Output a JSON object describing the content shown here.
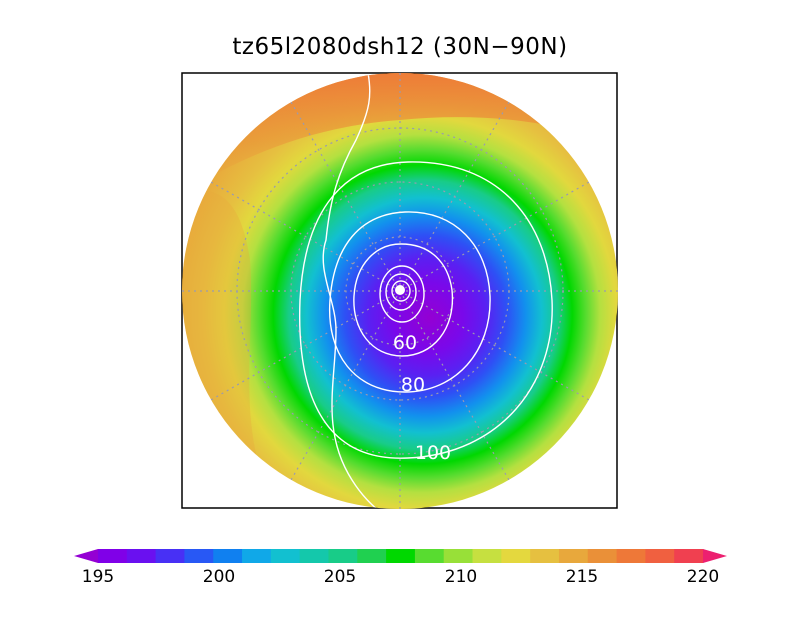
{
  "title": "tz65l2080dsh12 (30N−90N)",
  "map": {
    "projection": "north-polar-stereographic",
    "latitude_range": "30N-90N",
    "grid": "dotted",
    "contour_labels": [
      "60",
      "80",
      "100"
    ]
  },
  "colorbar": {
    "min": 195,
    "max": 220,
    "step": 1.25,
    "tick_labels": [
      "195",
      "200",
      "205",
      "210",
      "215",
      "220"
    ],
    "extend": "both",
    "colors": [
      "#9400d3",
      "#8000e8",
      "#6a10f0",
      "#4830f5",
      "#2858f5",
      "#1080f0",
      "#10a8e8",
      "#12c0d0",
      "#14c8ab",
      "#18cc88",
      "#20d050",
      "#00d800",
      "#58dc30",
      "#98e038",
      "#c6e040",
      "#e4d83e",
      "#e6c040",
      "#e8a83c",
      "#ea9038",
      "#ee7838",
      "#f06040",
      "#f04050",
      "#ec2070"
    ]
  }
}
